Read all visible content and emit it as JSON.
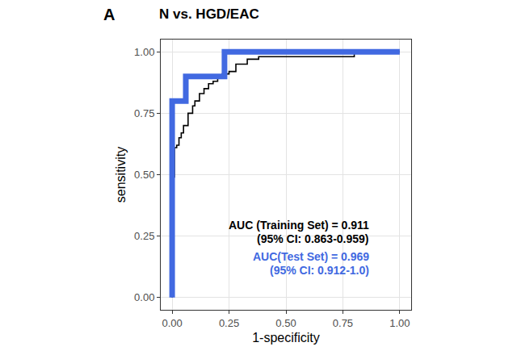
{
  "chart_data": {
    "type": "line",
    "panel_label": "A",
    "title": "N vs. HGD/EAC",
    "x_label": "1-specificity",
    "y_label": "sensitivity",
    "xlim": [
      -0.05,
      1.05
    ],
    "ylim": [
      -0.05,
      1.05
    ],
    "xticks": [
      {
        "value": 0,
        "label": "0.00"
      },
      {
        "value": 0.25,
        "label": "0.25"
      },
      {
        "value": 0.5,
        "label": "0.50"
      },
      {
        "value": 0.75,
        "label": "0.75"
      },
      {
        "value": 1,
        "label": "1.00"
      }
    ],
    "yticks": [
      {
        "value": 0,
        "label": "0.00"
      },
      {
        "value": 0.25,
        "label": "0.25"
      },
      {
        "value": 0.5,
        "label": "0.50"
      },
      {
        "value": 0.75,
        "label": "0.75"
      },
      {
        "value": 1,
        "label": "1.00"
      }
    ],
    "grid": true,
    "series": [
      {
        "color": "#000000",
        "line_style": "solid",
        "annotation": [
          "AUC (Training Set) = 0.911",
          "(95% CI: 0.863-0.959)"
        ],
        "x": [
          0,
          0,
          0.01,
          0.01,
          0.02,
          0.02,
          0.03,
          0.03,
          0.04,
          0.04,
          0.05,
          0.05,
          0.07,
          0.07,
          0.09,
          0.09,
          0.1,
          0.1,
          0.12,
          0.12,
          0.14,
          0.14,
          0.16,
          0.16,
          0.18,
          0.18,
          0.2,
          0.2,
          0.22,
          0.22,
          0.25,
          0.25,
          0.28,
          0.28,
          0.33,
          0.33,
          0.38,
          0.38,
          0.45,
          0.45,
          0.8,
          0.8,
          1.0
        ],
        "values": [
          0,
          0.49,
          0.49,
          0.61,
          0.61,
          0.62,
          0.62,
          0.65,
          0.65,
          0.67,
          0.67,
          0.7,
          0.7,
          0.75,
          0.75,
          0.78,
          0.78,
          0.8,
          0.8,
          0.83,
          0.83,
          0.85,
          0.85,
          0.87,
          0.87,
          0.88,
          0.88,
          0.9,
          0.9,
          0.91,
          0.91,
          0.92,
          0.92,
          0.95,
          0.95,
          0.97,
          0.97,
          0.98,
          0.98,
          0.98,
          0.98,
          1.0,
          1.0
        ]
      },
      {
        "color": "#4169e1",
        "line_style": "solid",
        "annotation": [
          "AUC(Test Set) = 0.969",
          "(95% CI: 0.912-1.0)"
        ],
        "x": [
          0,
          0,
          0.06,
          0.06,
          0.23,
          0.23,
          1.0
        ],
        "values": [
          0,
          0.8,
          0.8,
          0.9,
          0.9,
          1.0,
          1.0
        ]
      }
    ]
  }
}
